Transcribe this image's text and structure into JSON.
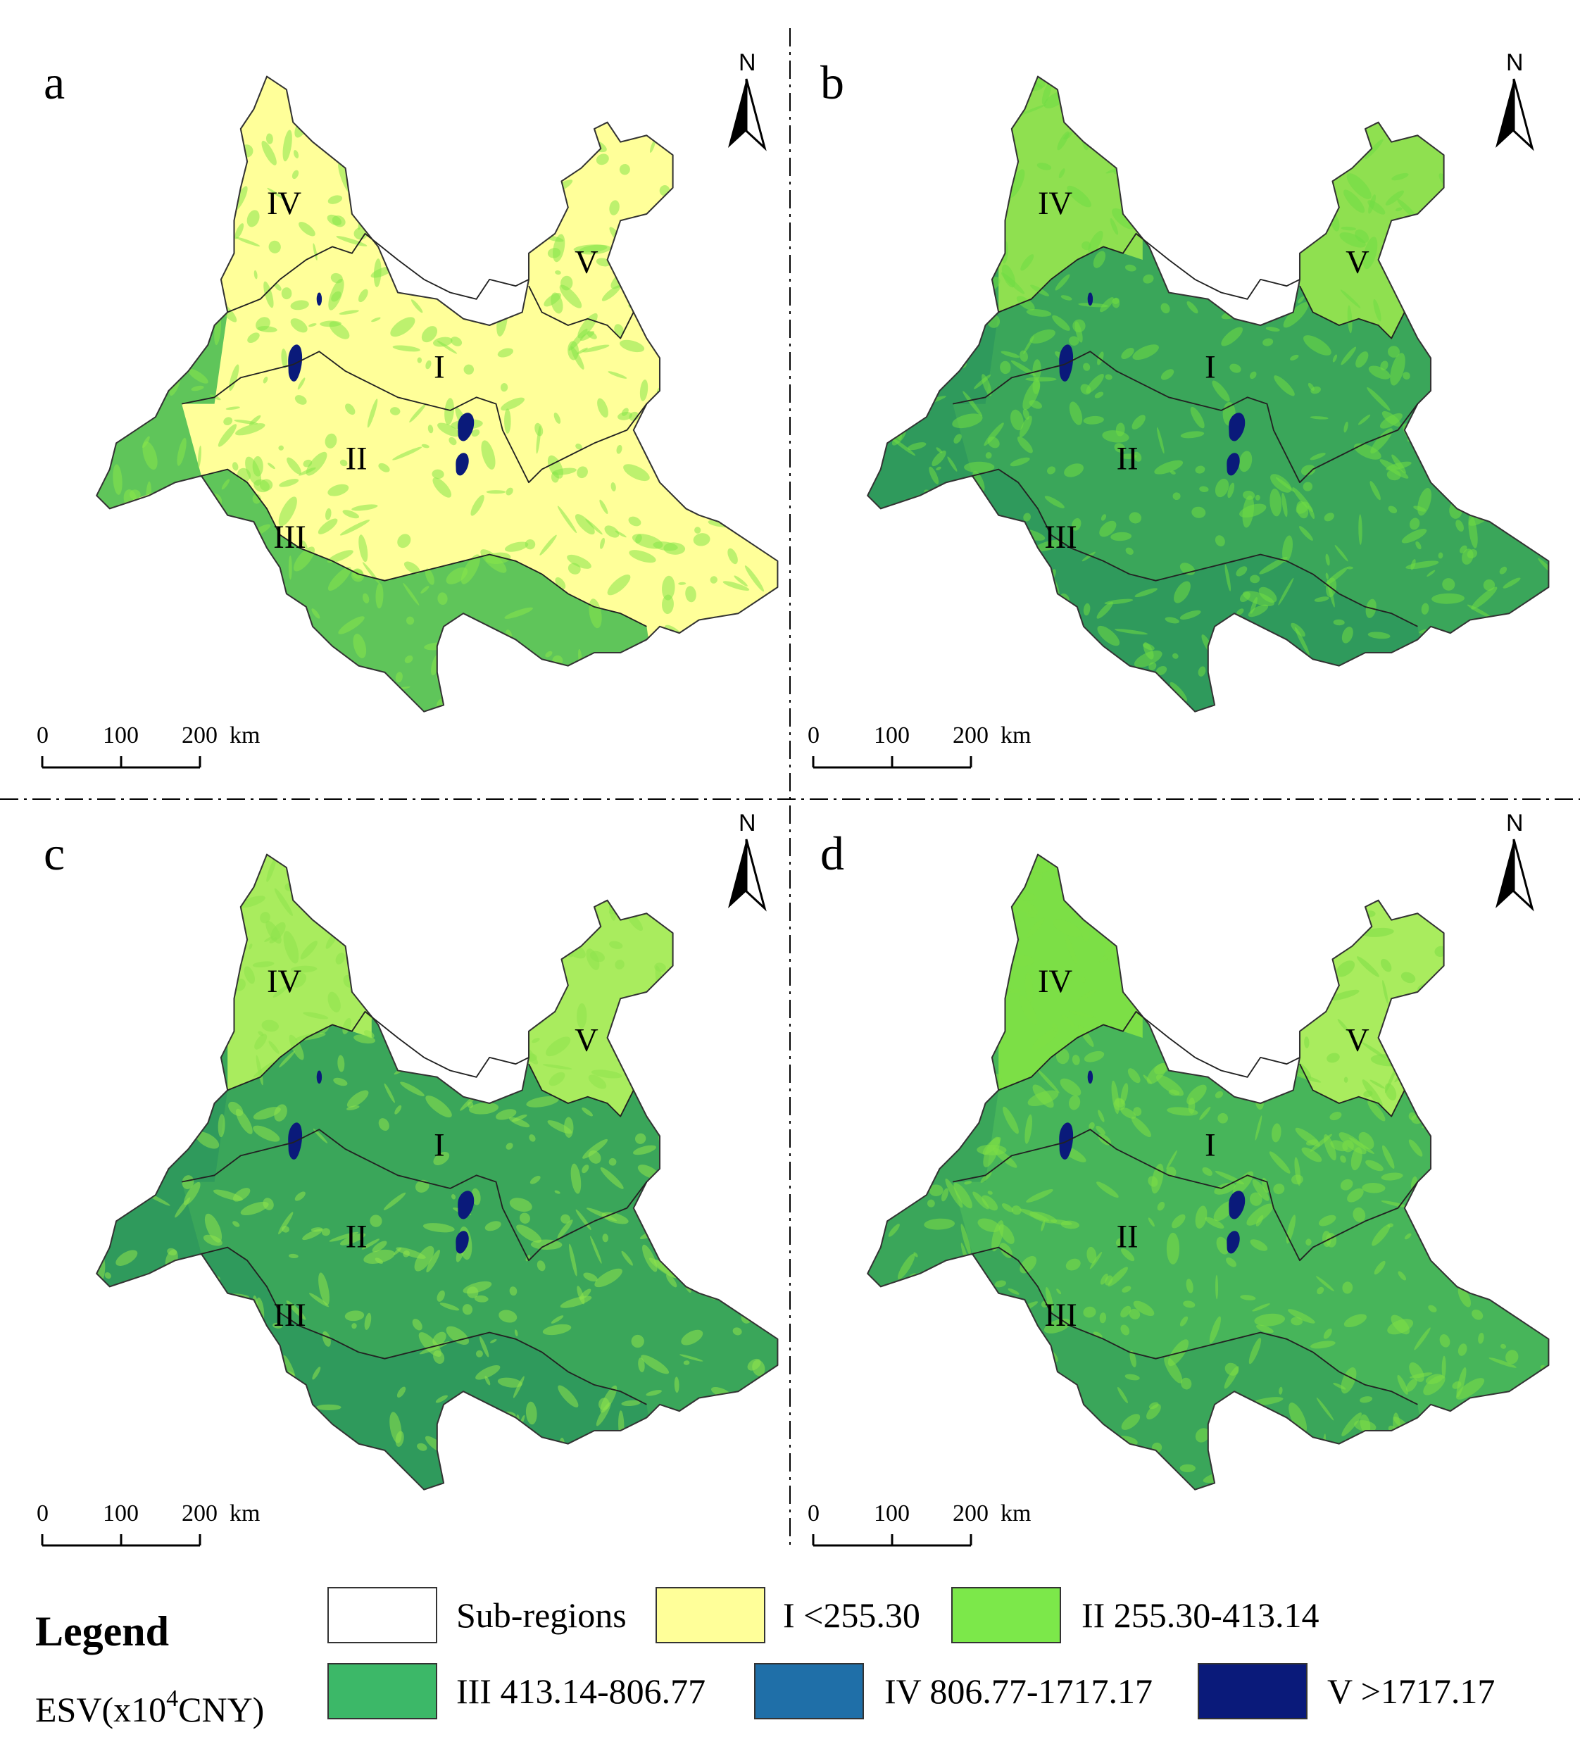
{
  "north_label": "N",
  "panels": [
    {
      "letter": "a",
      "fill_main": "#ffff99",
      "fill_south": "#5fc55a",
      "fill_west": "#5fc55a",
      "fill_north": "#ffff99",
      "fill_ne": "#ffff99",
      "texture": "#86e64a"
    },
    {
      "letter": "b",
      "fill_main": "#3aa65a",
      "fill_south": "#2f9a5c",
      "fill_west": "#2f9a5c",
      "fill_north": "#8fe050",
      "fill_ne": "#8fe050",
      "texture": "#6fdc44"
    },
    {
      "letter": "c",
      "fill_main": "#3aa65a",
      "fill_south": "#2f9a5c",
      "fill_west": "#2f9a5c",
      "fill_north": "#a9ec5e",
      "fill_ne": "#a9ec5e",
      "texture": "#8ee34c"
    },
    {
      "letter": "d",
      "fill_main": "#47b55a",
      "fill_south": "#3aa65a",
      "fill_west": "#3aa65a",
      "fill_north": "#7cdf46",
      "fill_ne": "#a9ec5e",
      "texture": "#7ddf46"
    }
  ],
  "subregions": [
    "I",
    "II",
    "III",
    "IV",
    "V"
  ],
  "scale": {
    "ticks": [
      "0",
      "100",
      "200"
    ],
    "unit": "km"
  },
  "legend": {
    "title": "Legend",
    "subtitle_prefix": "ESV(x10",
    "subtitle_exp": "4",
    "subtitle_suffix": "CNY)",
    "items": [
      {
        "label": "Sub-regions",
        "color": "#ffffff"
      },
      {
        "label": "I <255.30",
        "color": "#ffff99"
      },
      {
        "label": "II 255.30-413.14",
        "color": "#7ce84a"
      },
      {
        "label": "III 413.14-806.77",
        "color": "#3cb868"
      },
      {
        "label": "IV 806.77-1717.17",
        "color": "#1f6fa8"
      },
      {
        "label": "V >1717.17",
        "color": "#0a1a7a"
      }
    ]
  }
}
